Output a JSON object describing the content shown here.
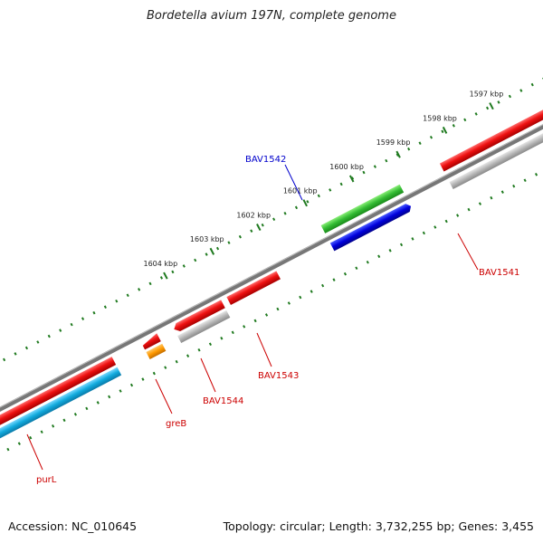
{
  "title": "Bordetella avium 197N, complete genome",
  "footer": {
    "accession": "Accession: NC_010645",
    "summary": "Topology: circular; Length: 3,732,255 bp; Genes: 3,455"
  },
  "ticks": [
    "1597 kbp",
    "1598 kbp",
    "1599 kbp",
    "1600 kbp",
    "1601 kbp",
    "1602 kbp",
    "1603 kbp",
    "1604 kbp"
  ],
  "genes": [
    {
      "label": "BAV1541",
      "color": "#cc0000"
    },
    {
      "label": "BAV1542",
      "color": "#0000cc"
    },
    {
      "label": "BAV1543",
      "color": "#cc0000"
    },
    {
      "label": "BAV1544",
      "color": "#cc0000"
    },
    {
      "label": "greB",
      "color": "#cc0000"
    },
    {
      "label": "purL",
      "color": "#cc0000"
    }
  ],
  "colors": {
    "backbone": "#777777",
    "cds": "#ee1111",
    "product": "#b5b5b5",
    "rna": "#33bb33",
    "blue_feature": "#0000dd",
    "orange_feature": "#ff9900",
    "cyan_feature": "#11aadd",
    "tick": "#1f7a1f"
  }
}
